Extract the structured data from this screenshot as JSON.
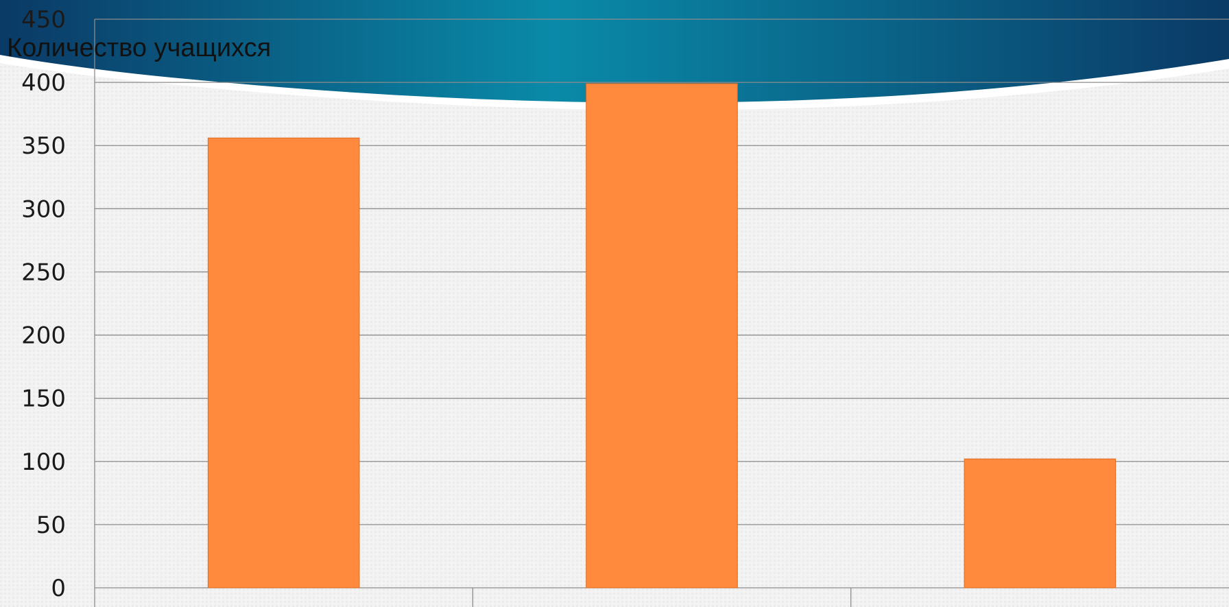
{
  "chart_data": {
    "type": "bar",
    "title": "",
    "xlabel": "",
    "ylabel": "Количество учащихся",
    "categories": [
      "",
      "",
      ""
    ],
    "values": [
      356,
      399,
      102
    ],
    "ylim": [
      0,
      450
    ],
    "yticks": [
      0,
      50,
      100,
      150,
      200,
      250,
      300,
      350,
      400,
      450
    ],
    "grid": true,
    "legend": "none",
    "colors": {
      "bar": "#ff8a3d",
      "bar_stroke": "#e06a20",
      "grid": "#8c8c8c",
      "banner_dark": "#0a3a66",
      "banner_light": "#0a8aa8",
      "background": "#f2f2f2"
    }
  }
}
